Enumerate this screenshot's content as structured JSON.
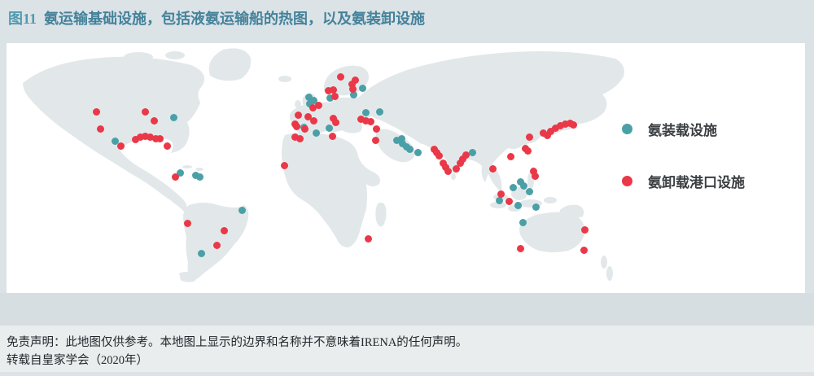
{
  "title": {
    "figure_label": "图11",
    "text": "氨运输基础设施，包括液氨运输船的热图，以及氨装卸设施"
  },
  "legend": {
    "items": [
      {
        "id": "loading",
        "label": "氨装载设施",
        "color": "#4aa0a6"
      },
      {
        "id": "unloading",
        "label": "氨卸载港口设施",
        "color": "#ea3848"
      }
    ]
  },
  "footer": {
    "disclaimer": "免责声明：此地图仅供参考。本地图上显示的边界和名称并不意味着IRENA的任何声明。",
    "source": "转载自皇家学会（2020年）"
  },
  "colors": {
    "page_background": "#dbe3e7",
    "panel_background": "#ffffff",
    "land": "#e2e8ea",
    "antarctica_band": "#d7dee1",
    "footer_background": "#e9edee",
    "title_label": "#4f9ab0",
    "title_text": "#44829a",
    "loading_dot": "#4aa0a6",
    "unloading_dot": "#ea3848"
  },
  "chart_data": {
    "type": "scatter",
    "title": "氨运输基础设施，包括液氨运输船的热图，以及氨装卸设施",
    "coordinate_system": "image pixels of 1000x462 screenshot, dot centers",
    "legend_position": "right",
    "series": [
      {
        "id": "loading",
        "name": "氨装载设施",
        "color": "#4aa0a6",
        "points": [
          [
            213,
            144
          ],
          [
            141,
            173
          ],
          [
            221,
            212
          ],
          [
            240,
            215
          ],
          [
            245,
            217
          ],
          [
            297,
            258
          ],
          [
            247,
            311
          ],
          [
            445,
            108
          ],
          [
            434,
            116
          ],
          [
            405,
            120
          ],
          [
            379,
            119
          ],
          [
            385,
            123
          ],
          [
            380,
            127
          ],
          [
            373,
            156
          ],
          [
            404,
            157
          ],
          [
            388,
            163
          ],
          [
            449,
            138
          ],
          [
            466,
            137
          ],
          [
            487,
            172
          ],
          [
            493,
            170
          ],
          [
            494,
            176
          ],
          [
            499,
            180
          ],
          [
            503,
            183
          ],
          [
            513,
            187
          ],
          [
            580,
            187
          ],
          [
            639,
            223
          ],
          [
            630,
            230
          ],
          [
            643,
            228
          ],
          [
            650,
            235
          ],
          [
            613,
            246
          ],
          [
            636,
            252
          ],
          [
            658,
            254
          ],
          [
            642,
            273
          ]
        ]
      },
      {
        "id": "unloading",
        "name": "氨卸载港口设施",
        "color": "#ea3848",
        "points": [
          [
            118,
            137
          ],
          [
            123,
            158
          ],
          [
            178,
            137
          ],
          [
            189,
            148
          ],
          [
            148,
            179
          ],
          [
            166,
            171
          ],
          [
            172,
            168
          ],
          [
            178,
            167
          ],
          [
            184,
            168
          ],
          [
            191,
            170
          ],
          [
            196,
            170
          ],
          [
            205,
            179
          ],
          [
            215,
            217
          ],
          [
            230,
            274
          ],
          [
            275,
            283
          ],
          [
            266,
            301
          ],
          [
            349,
            203
          ],
          [
            452,
            293
          ],
          [
            418,
            94
          ],
          [
            436,
            98
          ],
          [
            432,
            103
          ],
          [
            433,
            109
          ],
          [
            403,
            111
          ],
          [
            409,
            110
          ],
          [
            411,
            118
          ],
          [
            391,
            129
          ],
          [
            384,
            132
          ],
          [
            366,
            141
          ],
          [
            378,
            143
          ],
          [
            385,
            148
          ],
          [
            409,
            145
          ],
          [
            412,
            150
          ],
          [
            362,
            152
          ],
          [
            364,
            155
          ],
          [
            374,
            158
          ],
          [
            362,
            168
          ],
          [
            368,
            170
          ],
          [
            408,
            167
          ],
          [
            443,
            146
          ],
          [
            449,
            148
          ],
          [
            455,
            149
          ],
          [
            462,
            158
          ],
          [
            461,
            172
          ],
          [
            533,
            183
          ],
          [
            536,
            187
          ],
          [
            539,
            191
          ],
          [
            544,
            200
          ],
          [
            547,
            205
          ],
          [
            550,
            210
          ],
          [
            560,
            207
          ],
          [
            565,
            200
          ],
          [
            568,
            195
          ],
          [
            572,
            190
          ],
          [
            650,
            168
          ],
          [
            645,
            182
          ],
          [
            648,
            185
          ],
          [
            627,
            192
          ],
          [
            655,
            210
          ],
          [
            657,
            216
          ],
          [
            667,
            163
          ],
          [
            672,
            166
          ],
          [
            676,
            161
          ],
          [
            682,
            157
          ],
          [
            688,
            154
          ],
          [
            694,
            152
          ],
          [
            700,
            151
          ],
          [
            704,
            153
          ],
          [
            605,
            207
          ],
          [
            615,
            238
          ],
          [
            625,
            247
          ],
          [
            718,
            282
          ],
          [
            639,
            305
          ],
          [
            717,
            307
          ]
        ]
      }
    ]
  }
}
